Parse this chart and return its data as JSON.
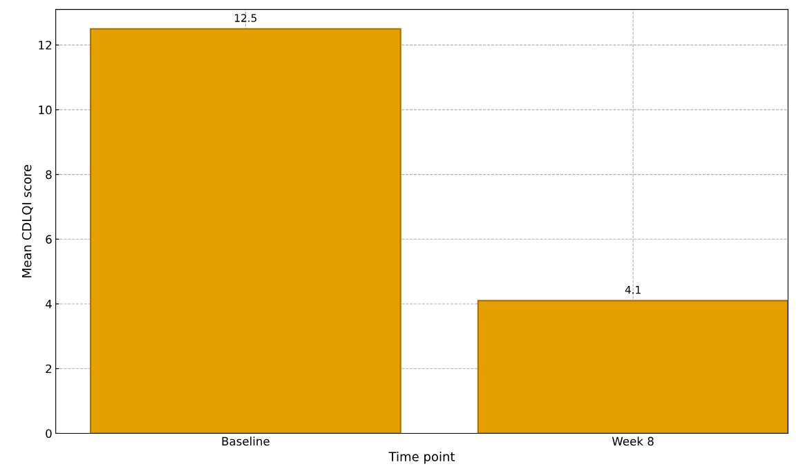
{
  "chart_data": {
    "type": "bar",
    "xlabel": "Time point",
    "ylabel": "Mean CDLQI score",
    "categories": [
      "Baseline",
      "Week 8"
    ],
    "values": [
      12.5,
      4.1
    ],
    "color": "#e5a000",
    "data_labels": true,
    "ylim": [
      0,
      13.1
    ],
    "yticks": [
      0,
      2,
      4,
      6,
      8,
      10,
      12
    ],
    "grid": true
  }
}
